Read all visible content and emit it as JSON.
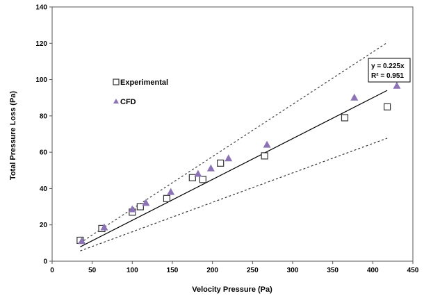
{
  "chart_data": {
    "type": "scatter",
    "xlabel": "Velocity Pressure (Pa)",
    "ylabel": "Total Pressure Loss (Pa)",
    "xlim": [
      0,
      450
    ],
    "ylim": [
      0,
      140
    ],
    "xticks": [
      0,
      50,
      100,
      150,
      200,
      250,
      300,
      350,
      400,
      450
    ],
    "yticks": [
      0,
      20,
      40,
      60,
      80,
      100,
      120,
      140
    ],
    "grid": false,
    "legend_position": "left",
    "series": [
      {
        "name": "Experimental",
        "marker": "square-open",
        "color": "#333333",
        "points": [
          {
            "x": 35,
            "y": 11.5
          },
          {
            "x": 62,
            "y": 18
          },
          {
            "x": 100,
            "y": 27
          },
          {
            "x": 110,
            "y": 30
          },
          {
            "x": 143,
            "y": 34.5
          },
          {
            "x": 175,
            "y": 46
          },
          {
            "x": 188,
            "y": 45
          },
          {
            "x": 210,
            "y": 54
          },
          {
            "x": 265,
            "y": 58
          },
          {
            "x": 365,
            "y": 79
          },
          {
            "x": 418,
            "y": 85
          }
        ]
      },
      {
        "name": "CFD",
        "marker": "triangle",
        "color": "#8c73b5",
        "points": [
          {
            "x": 37,
            "y": 11
          },
          {
            "x": 65,
            "y": 18.5
          },
          {
            "x": 100,
            "y": 28.5
          },
          {
            "x": 117,
            "y": 32
          },
          {
            "x": 148,
            "y": 38
          },
          {
            "x": 182,
            "y": 48
          },
          {
            "x": 198,
            "y": 51
          },
          {
            "x": 220,
            "y": 56.5
          },
          {
            "x": 268,
            "y": 64
          },
          {
            "x": 377,
            "y": 90
          },
          {
            "x": 430,
            "y": 96.5
          }
        ]
      }
    ],
    "trendline": {
      "slope": 0.225,
      "x_range": [
        35,
        418
      ],
      "color": "#000000",
      "equation": "y = 0.225x",
      "r_squared": "R² = 0.951"
    },
    "bounds": [
      {
        "slope": 0.288,
        "x_range": [
          35,
          418
        ],
        "style": "dashed"
      },
      {
        "slope": 0.162,
        "x_range": [
          35,
          418
        ],
        "style": "dashed"
      }
    ]
  }
}
